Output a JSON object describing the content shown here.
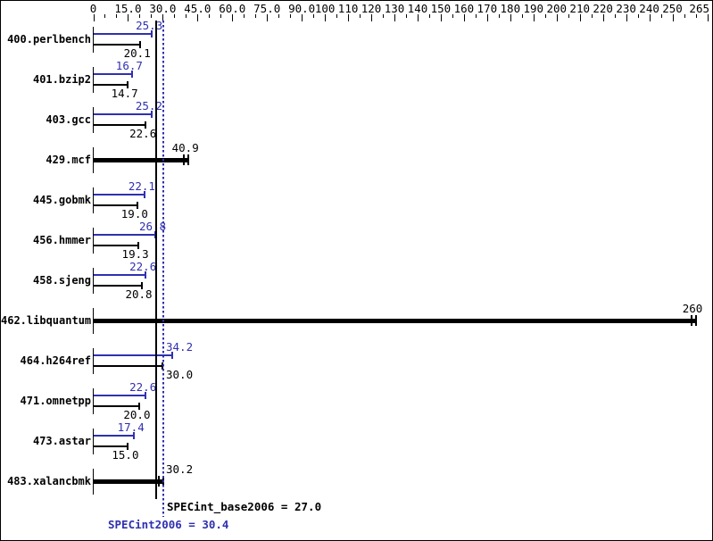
{
  "chart_data": {
    "type": "bar",
    "orientation": "horizontal",
    "title": "",
    "xlabel": "",
    "ylabel": "",
    "xlim": [
      0,
      265
    ],
    "grid": false,
    "colors": {
      "peak": "#3030b0",
      "base": "#000000",
      "single": "#000000"
    },
    "x_axis": {
      "minor_step": 5,
      "majors": [
        {
          "value": 0,
          "label": "0"
        },
        {
          "value": 15,
          "label": "15.0"
        },
        {
          "value": 30,
          "label": "30.0"
        },
        {
          "value": 45,
          "label": "45.0"
        },
        {
          "value": 60,
          "label": "60.0"
        },
        {
          "value": 75,
          "label": "75.0"
        },
        {
          "value": 90,
          "label": "90.0"
        },
        {
          "value": 100,
          "label": "100"
        },
        {
          "value": 110,
          "label": "110"
        },
        {
          "value": 120,
          "label": "120"
        },
        {
          "value": 130,
          "label": "130"
        },
        {
          "value": 140,
          "label": "140"
        },
        {
          "value": 150,
          "label": "150"
        },
        {
          "value": 160,
          "label": "160"
        },
        {
          "value": 170,
          "label": "170"
        },
        {
          "value": 180,
          "label": "180"
        },
        {
          "value": 190,
          "label": "190"
        },
        {
          "value": 200,
          "label": "200"
        },
        {
          "value": 210,
          "label": "210"
        },
        {
          "value": 220,
          "label": "220"
        },
        {
          "value": 230,
          "label": "230"
        },
        {
          "value": 240,
          "label": "240"
        },
        {
          "value": 250,
          "label": "250"
        },
        {
          "value": 265,
          "label": "265"
        }
      ]
    },
    "categories": [
      "400.perlbench",
      "401.bzip2",
      "403.gcc",
      "429.mcf",
      "445.gobmk",
      "456.hmmer",
      "458.sjeng",
      "462.libquantum",
      "464.h264ref",
      "471.omnetpp",
      "473.astar",
      "483.xalancbmk"
    ],
    "benchmarks": [
      {
        "name": "400.perlbench",
        "style": "pair",
        "peak": 25.3,
        "peak_label": "25.3",
        "base": 20.1,
        "base_label": "20.1"
      },
      {
        "name": "401.bzip2",
        "style": "pair",
        "peak": 16.7,
        "peak_label": "16.7",
        "base": 14.7,
        "base_label": "14.7"
      },
      {
        "name": "403.gcc",
        "style": "pair",
        "peak": 25.2,
        "peak_label": "25.2",
        "base": 22.6,
        "base_label": "22.6"
      },
      {
        "name": "429.mcf",
        "style": "single",
        "value": 40.9,
        "value_label": "40.9"
      },
      {
        "name": "445.gobmk",
        "style": "pair",
        "peak": 22.1,
        "peak_label": "22.1",
        "base": 19.0,
        "base_label": "19.0"
      },
      {
        "name": "456.hmmer",
        "style": "pair",
        "peak": 26.8,
        "peak_label": "26.8",
        "base": 19.3,
        "base_label": "19.3"
      },
      {
        "name": "458.sjeng",
        "style": "pair",
        "peak": 22.6,
        "peak_label": "22.6",
        "base": 20.8,
        "base_label": "20.8"
      },
      {
        "name": "462.libquantum",
        "style": "single",
        "value": 260,
        "value_label": "260"
      },
      {
        "name": "464.h264ref",
        "style": "pair",
        "peak": 34.2,
        "peak_label": "34.2",
        "base": 30.0,
        "base_label": "30.0"
      },
      {
        "name": "471.omnetpp",
        "style": "pair",
        "peak": 22.6,
        "peak_label": "22.6",
        "base": 20.0,
        "base_label": "20.0"
      },
      {
        "name": "473.astar",
        "style": "pair",
        "peak": 17.4,
        "peak_label": "17.4",
        "base": 15.0,
        "base_label": "15.0"
      },
      {
        "name": "483.xalancbmk",
        "style": "single",
        "value": 30.2,
        "value_label": "30.2"
      }
    ],
    "reference_lines": [
      {
        "name": "base-mean",
        "value": 27.0,
        "line_style": "solid",
        "color": "#000000"
      },
      {
        "name": "peak-mean",
        "value": 30.4,
        "line_style": "dotted",
        "color": "#3030b0"
      }
    ],
    "summary": {
      "base_text": "SPECint_base2006 = 27.0",
      "base_value": 27.0,
      "peak_text": "SPECint2006 = 30.4",
      "peak_value": 30.4
    }
  }
}
